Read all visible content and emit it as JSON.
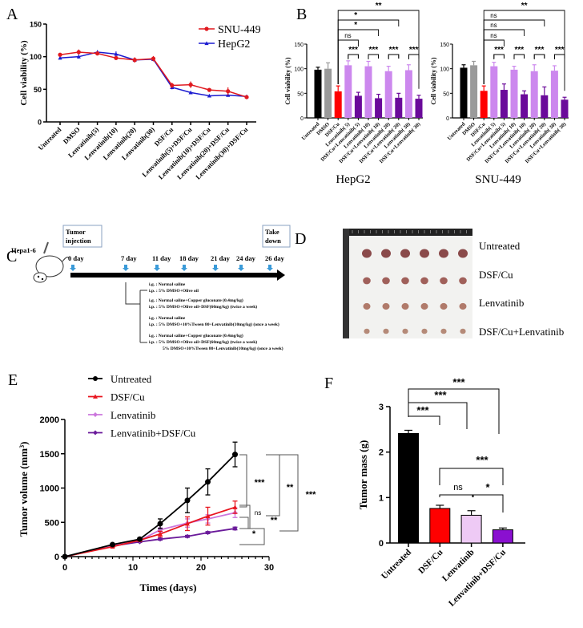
{
  "panel_labels": [
    "A",
    "B",
    "C",
    "D",
    "E",
    "F"
  ],
  "chart_data": [
    {
      "panel": "A",
      "type": "line",
      "ylabel": "Cell viability (%)",
      "ylim": [
        0,
        150
      ],
      "yticks": [
        "0",
        "50",
        "100",
        "150"
      ],
      "categories": [
        "Untreated",
        "DMSO",
        "Lenvatinib(5)",
        "Lenvatinib(10)",
        "Lenvatinib(20)",
        "Lenvatinib(30)",
        "DSF/Cu",
        "Lenvatinib(5)+DSF/Cu",
        "Lenvatinib(10)+DSF/Cu",
        "Lenvatinib(20)+DSF/Cu",
        "Lenvatinib(30)+DSF/Cu"
      ],
      "legend_position": "top-right",
      "series": [
        {
          "name": "SNU-449",
          "color": "#e0191f",
          "marker": "circle",
          "values": [
            103,
            107,
            105,
            98,
            95,
            97,
            56,
            57,
            49,
            47,
            38
          ],
          "errors": [
            2,
            4,
            3,
            3,
            4,
            4,
            4,
            5,
            2,
            6,
            2
          ]
        },
        {
          "name": "HepG2",
          "color": "#1b1bd0",
          "marker": "triangle",
          "values": [
            98,
            100,
            107,
            104,
            95,
            96,
            53,
            45,
            40,
            41,
            39
          ],
          "errors": [
            2,
            3,
            3,
            4,
            3,
            3,
            3,
            2,
            2,
            2,
            2
          ]
        }
      ]
    },
    {
      "panel": "B-HepG2",
      "type": "bar",
      "title": "HepG2",
      "ylabel": "Cell viability (%)",
      "ylim": [
        0,
        150
      ],
      "yticks": [
        "0",
        "50",
        "100",
        "150"
      ],
      "categories": [
        "Untreated",
        "DMSO",
        "DSF/Cu",
        "Lenvatinib( 5)",
        "DSF/Cu+Lenvatinib( 5)",
        "Lenvatinib( 10)",
        "DSF/Cu+Lenvatinib( 10)",
        "Lenvatinib( 20)",
        "DSF/Cu+Lenvatinib( 20)",
        "Lenvatinib( 30)",
        "DSF/Cu+Lenvatinib( 30)"
      ],
      "values": [
        98,
        100,
        54,
        107,
        45,
        105,
        40,
        95,
        41,
        97,
        39
      ],
      "errors": [
        5,
        12,
        11,
        9,
        7,
        10,
        8,
        10,
        9,
        11,
        7
      ],
      "colors": [
        "#000000",
        "#9a9a9a",
        "#ff0000",
        "#cc88ee",
        "#6a0a9a",
        "#cc88ee",
        "#6a0a9a",
        "#cc88ee",
        "#6a0a9a",
        "#cc88ee",
        "#6a0a9a"
      ],
      "significance": [
        {
          "from": 2,
          "to": 4,
          "label": "ns"
        },
        {
          "from": 2,
          "to": 6,
          "label": "*"
        },
        {
          "from": 2,
          "to": 8,
          "label": "*"
        },
        {
          "from": 2,
          "to": 10,
          "label": "**"
        },
        {
          "from": 3,
          "to": 4,
          "label": "***"
        },
        {
          "from": 5,
          "to": 6,
          "label": "***"
        },
        {
          "from": 7,
          "to": 8,
          "label": "***"
        },
        {
          "from": 9,
          "to": 10,
          "label": "***"
        }
      ]
    },
    {
      "panel": "B-SNU-449",
      "type": "bar",
      "title": "SNU-449",
      "ylabel": "Cell viability (%)",
      "ylim": [
        0,
        150
      ],
      "yticks": [
        "0",
        "50",
        "100",
        "150"
      ],
      "categories": [
        "Untreated",
        "DMSO",
        "DSF/Cu",
        "Lenvatinib( 5)",
        "DSF/Cu+Lenvatinib( 5)",
        "Lenvatinib( 10)",
        "DSF/Cu+Lenvatinib( 10)",
        "Lenvatinib( 20)",
        "DSF/Cu+Lenvatinib( 20)",
        "Lenvatinib( 30)",
        "DSF/Cu+Lenvatinib( 30)"
      ],
      "values": [
        102,
        107,
        55,
        105,
        57,
        98,
        48,
        95,
        46,
        96,
        37
      ],
      "errors": [
        6,
        8,
        10,
        8,
        12,
        7,
        7,
        13,
        17,
        10,
        5
      ],
      "colors": [
        "#000000",
        "#9a9a9a",
        "#ff0000",
        "#cc88ee",
        "#6a0a9a",
        "#cc88ee",
        "#6a0a9a",
        "#cc88ee",
        "#6a0a9a",
        "#cc88ee",
        "#6a0a9a"
      ],
      "significance": [
        {
          "from": 2,
          "to": 4,
          "label": "ns"
        },
        {
          "from": 2,
          "to": 6,
          "label": "ns"
        },
        {
          "from": 2,
          "to": 8,
          "label": "ns"
        },
        {
          "from": 2,
          "to": 10,
          "label": "**"
        },
        {
          "from": 3,
          "to": 4,
          "label": "***"
        },
        {
          "from": 5,
          "to": 6,
          "label": "***"
        },
        {
          "from": 7,
          "to": 8,
          "label": "***"
        },
        {
          "from": 9,
          "to": 10,
          "label": "***"
        }
      ]
    },
    {
      "panel": "E",
      "type": "line",
      "xlabel": "Times (days)",
      "ylabel": "Tumor volume (mm3)",
      "xlim": [
        0,
        30
      ],
      "ylim": [
        0,
        2000
      ],
      "xticks": [
        "0",
        "10",
        "20",
        "30"
      ],
      "yticks": [
        "0",
        "500",
        "1000",
        "1500",
        "2000"
      ],
      "x": [
        0,
        7,
        11,
        14,
        18,
        21,
        25
      ],
      "legend_position": "top-left",
      "series": [
        {
          "name": "Untreated",
          "color": "#000000",
          "marker": "circle",
          "values": [
            0,
            175,
            255,
            480,
            820,
            1090,
            1490
          ],
          "errors": [
            0,
            15,
            20,
            70,
            180,
            190,
            180
          ]
        },
        {
          "name": "DSF/Cu",
          "color": "#e8141e",
          "marker": "triangle",
          "values": [
            0,
            145,
            240,
            330,
            480,
            590,
            720
          ],
          "errors": [
            0,
            10,
            15,
            40,
            100,
            130,
            90
          ]
        },
        {
          "name": "Lenvatinib",
          "color": "#cc77dd",
          "marker": "diamond",
          "values": [
            0,
            160,
            235,
            390,
            490,
            550,
            640
          ],
          "errors": [
            0,
            10,
            15,
            30,
            60,
            60,
            70
          ]
        },
        {
          "name": "Lenvatinib+DSF/Cu",
          "color": "#6a1a9a",
          "marker": "diamond",
          "values": [
            0,
            155,
            215,
            255,
            295,
            350,
            410
          ],
          "errors": [
            0,
            8,
            10,
            15,
            15,
            15,
            20
          ]
        }
      ],
      "significance": [
        "***",
        "ns",
        "*",
        "**",
        "**",
        "***"
      ]
    },
    {
      "panel": "F",
      "type": "bar",
      "ylabel": "Tumor mass (g)",
      "ylim": [
        0,
        3
      ],
      "yticks": [
        "0",
        "1",
        "2",
        "3"
      ],
      "categories": [
        "Untreated",
        "DSF/Cu",
        "Lenvatinib",
        "Lenvatinib+DSF/Cu"
      ],
      "values": [
        2.41,
        0.76,
        0.61,
        0.29
      ],
      "errors": [
        0.07,
        0.07,
        0.1,
        0.04
      ],
      "colors": [
        "#000000",
        "#ff0000",
        "#eecaf5",
        "#8a10d0"
      ],
      "significance": [
        {
          "from": 0,
          "to": 1,
          "label": "***"
        },
        {
          "from": 0,
          "to": 2,
          "label": "***"
        },
        {
          "from": 0,
          "to": 3,
          "label": "***"
        },
        {
          "from": 1,
          "to": 3,
          "label": "***"
        },
        {
          "from": 1,
          "to": 2,
          "label": "ns"
        },
        {
          "from": 2,
          "to": 3,
          "label": "*"
        }
      ]
    }
  ],
  "schedule": {
    "cell_line": "Hepa1-6",
    "start_box": "Tumor injection",
    "end_box": "Take down",
    "days": [
      "0 day",
      "7 day",
      "11 day",
      "18 day",
      "21 day",
      "24 day",
      "26 day"
    ],
    "groups": [
      [
        "i.g. : Normal saline",
        "i.p. : 5% DMSO+Olive oil"
      ],
      [
        "i.g. : Normal saline+Copper gluconate (0.4mg/kg)",
        "i.p. : 5% DMSO+Olive oil+DSF(60mg/kg) (twice a week)"
      ],
      [
        "i.g. : Normal saline",
        "i.p. : 5% DMSO+10%Tween 80+Lenvatinib(10mg/kg) (once a week)"
      ],
      [
        "i.g. : Normal saline+Copper gluconate (0.4mg/kg)",
        "i.p. : 5% DMSO+Olive oil+DSF(60mg/kg) (twice a week)",
        "5% DMSO+10%Tween 80+Lenvatinib(10mg/kg) (once a week)"
      ]
    ]
  },
  "photo": {
    "rows": [
      "Untreated",
      "DSF/Cu",
      "Lenvatinib",
      "DSF/Cu+Lenvatinib"
    ],
    "tumor_colors": [
      "#8a4a4a",
      "#a0605a",
      "#b07a6a",
      "#b58a78"
    ],
    "tumor_scale": [
      1.0,
      0.8,
      0.75,
      0.6
    ]
  }
}
